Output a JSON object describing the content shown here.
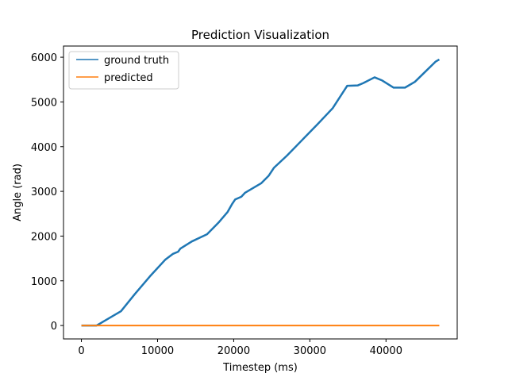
{
  "chart_data": {
    "type": "line",
    "title": "Prediction Visualization",
    "xlabel": "Timestep (ms)",
    "ylabel": "Angle (rad)",
    "xlim": [
      -2350,
      49350
    ],
    "ylim": [
      -300,
      6250
    ],
    "xticks": [
      0,
      10000,
      20000,
      30000,
      40000
    ],
    "yticks": [
      0,
      1000,
      2000,
      3000,
      4000,
      5000,
      6000
    ],
    "grid": false,
    "legend_position": "top-left",
    "series": [
      {
        "name": "ground truth",
        "color": "#1f77b4",
        "x": [
          0,
          2000,
          3000,
          5200,
          7000,
          9000,
          11000,
          12000,
          12700,
          13000,
          14500,
          16500,
          18000,
          19200,
          19800,
          20200,
          21000,
          21500,
          22800,
          23600,
          24600,
          25300,
          27000,
          29000,
          31000,
          33000,
          34900,
          36300,
          37000,
          38500,
          39500,
          41000,
          42000,
          42500,
          43800,
          45000,
          46500,
          47000
        ],
        "y": [
          0,
          0,
          100,
          320,
          700,
          1100,
          1470,
          1600,
          1650,
          1720,
          1880,
          2040,
          2300,
          2540,
          2720,
          2820,
          2880,
          2970,
          3100,
          3180,
          3350,
          3530,
          3800,
          4150,
          4500,
          4860,
          5360,
          5370,
          5420,
          5550,
          5480,
          5320,
          5320,
          5320,
          5450,
          5650,
          5900,
          5950
        ]
      },
      {
        "name": "predicted",
        "color": "#ff7f0e",
        "x": [
          0,
          47000
        ],
        "y": [
          0,
          0
        ]
      }
    ]
  }
}
